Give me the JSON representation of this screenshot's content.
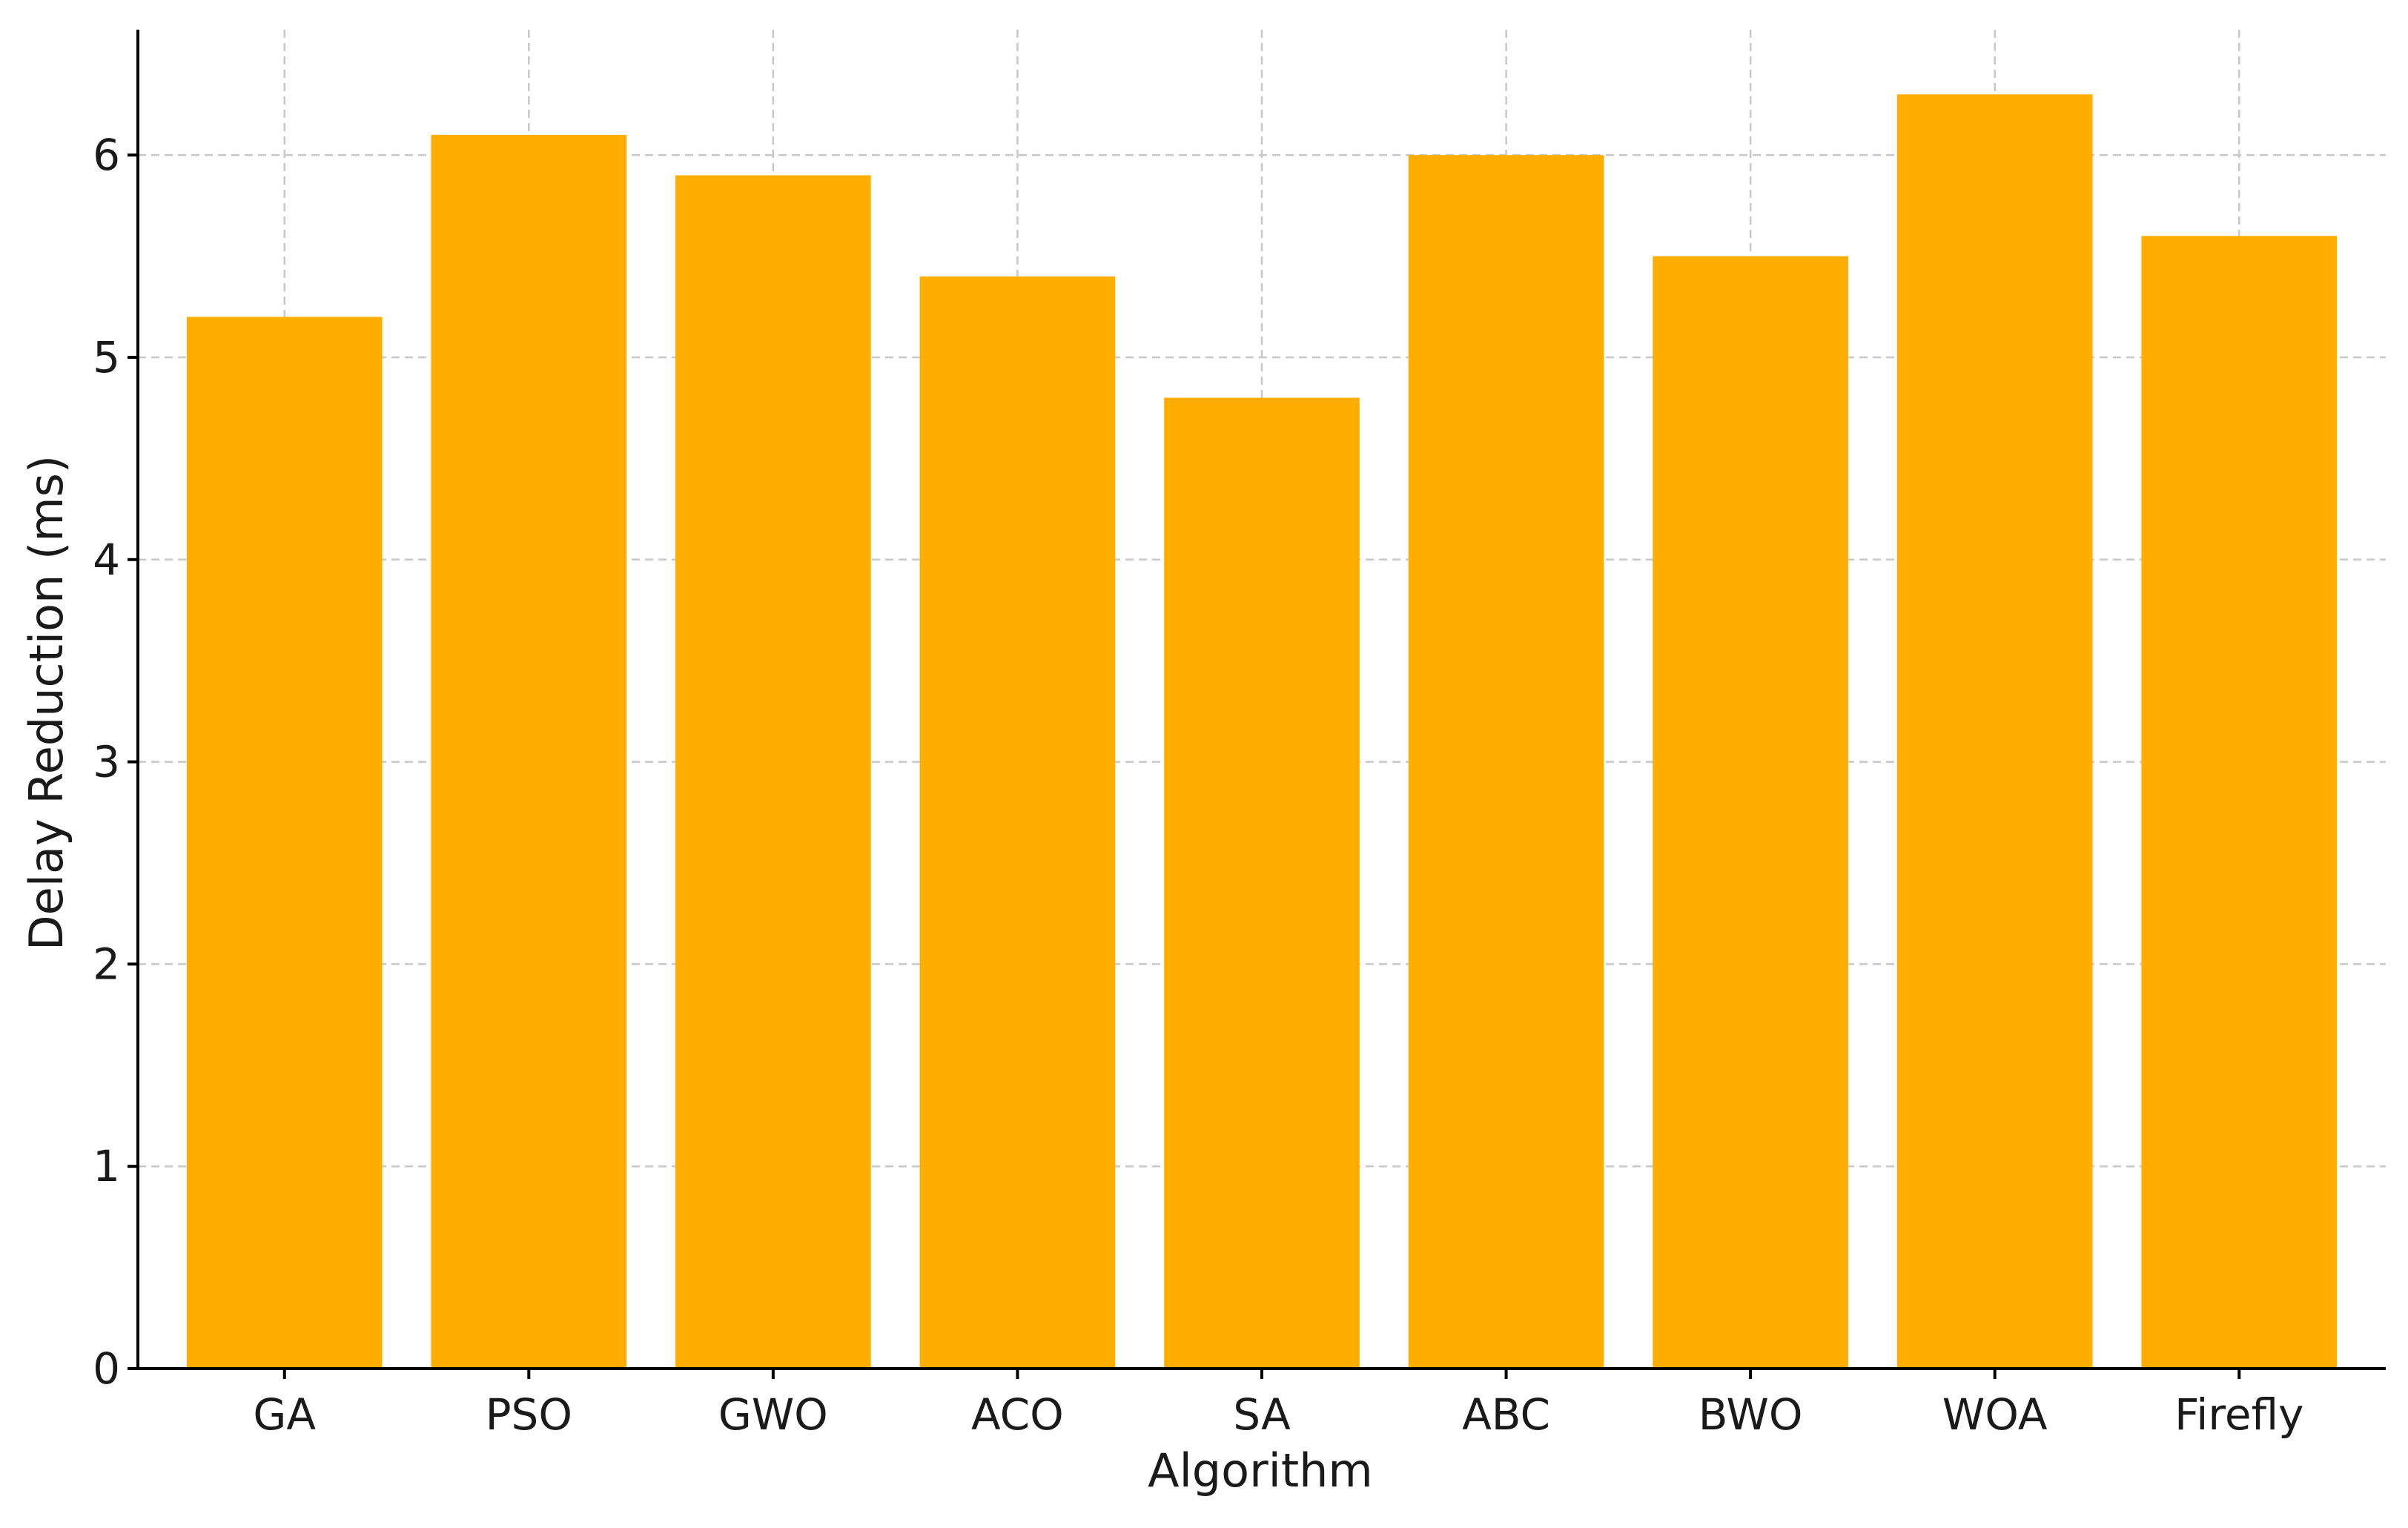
{
  "chart_data": {
    "type": "bar",
    "title": "",
    "xlabel": "Algorithm",
    "ylabel": "Delay Reduction (ms)",
    "categories": [
      "GA",
      "PSO",
      "GWO",
      "ACO",
      "SA",
      "ABC",
      "BWO",
      "WOA",
      "Firefly"
    ],
    "values": [
      5.2,
      6.1,
      5.9,
      5.4,
      4.8,
      6.0,
      5.5,
      6.3,
      5.6
    ],
    "ylim": [
      0,
      6.62
    ],
    "yticks": [
      0,
      1,
      2,
      3,
      4,
      5,
      6
    ],
    "ytick_labels": [
      "0",
      "1",
      "2",
      "3",
      "4",
      "5",
      "6"
    ],
    "grid": true,
    "grid_style": "dashed",
    "legend": "none",
    "bar_color": "#FFAE00",
    "grid_color": "#c8c8c8",
    "axis_color": "#000000"
  }
}
